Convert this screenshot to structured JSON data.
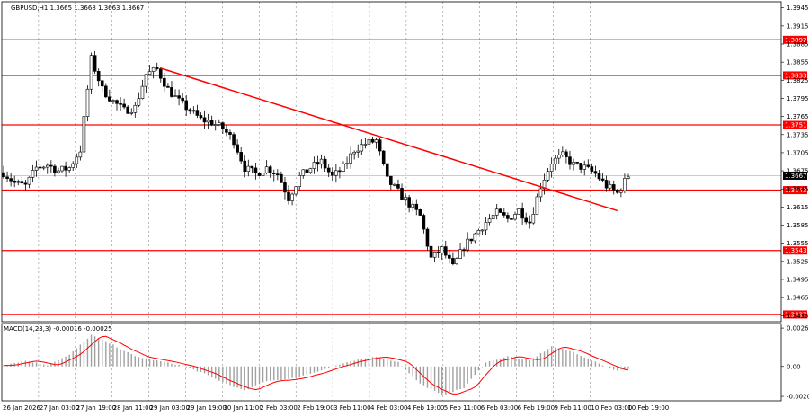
{
  "window": {
    "symbol_info": "GBPUSD,H1  1.3665 1.3668 1.3663 1.3667",
    "macd_info": "MACD(14,23,3) -0.00016 -0.00025"
  },
  "colors": {
    "background": "#ffffff",
    "grid": "#000000",
    "candle": "#000000",
    "support_resistance": "#ff0000",
    "label_bg": "#ff0000",
    "label_text": "#ffffff",
    "macd_histogram": "#a0a0a0",
    "macd_signal": "#ff0000",
    "current_price_bg": "#000000"
  },
  "chart_data": [
    {
      "type": "candlestick",
      "title": "",
      "x_tick_labels": [
        "26 Jan 2026",
        "27 Jan 03:00",
        "27 Jan 19:00",
        "28 Jan 11:00",
        "29 Jan 03:00",
        "29 Jan 19:00",
        "30 Jan 11:00",
        "2 Feb 03:00",
        "2 Feb 19:00",
        "3 Feb 11:00",
        "4 Feb 03:00",
        "4 Feb 19:00",
        "5 Feb 11:00",
        "6 Feb 03:00",
        "6 Feb 19:00",
        "9 Feb 11:00",
        "10 Feb 03:00",
        "10 Feb 19:00"
      ],
      "y_tick_labels": [
        "1.3945",
        "1.3915",
        "1.3885",
        "1.3855",
        "1.3825",
        "1.3795",
        "1.3765",
        "1.3735",
        "1.3705",
        "1.3675",
        "1.3645",
        "1.3615",
        "1.3585",
        "1.3555",
        "1.3525",
        "1.3495",
        "1.3465",
        "1.3435"
      ],
      "ylim": [
        1.3425,
        1.3955
      ],
      "grid": "on",
      "current_price": "1.3667",
      "levels": [
        {
          "label": "1.3892",
          "value": 1.3892
        },
        {
          "label": "1.3833",
          "value": 1.3833
        },
        {
          "label": "1.3751",
          "value": 1.3751
        },
        {
          "label": "1.3643",
          "value": 1.3643
        },
        {
          "label": "1.3543",
          "value": 1.3543
        },
        {
          "label": "1.3437",
          "value": 1.3437
        }
      ],
      "trendline": {
        "x": [
          43,
          168
        ],
        "y": [
          1.3845,
          1.3609
        ]
      },
      "anchors": [
        [
          0,
          1.3672
        ],
        [
          3,
          1.3655
        ],
        [
          6,
          1.365
        ],
        [
          9,
          1.368
        ],
        [
          12,
          1.3685
        ],
        [
          15,
          1.3675
        ],
        [
          18,
          1.368
        ],
        [
          21,
          1.371
        ],
        [
          24,
          1.386
        ],
        [
          27,
          1.381
        ],
        [
          30,
          1.379
        ],
        [
          33,
          1.3775
        ],
        [
          36,
          1.378
        ],
        [
          39,
          1.3835
        ],
        [
          42,
          1.3843
        ],
        [
          45,
          1.381
        ],
        [
          48,
          1.379
        ],
        [
          51,
          1.3775
        ],
        [
          54,
          1.376
        ],
        [
          57,
          1.3755
        ],
        [
          60,
          1.3745
        ],
        [
          63,
          1.3725
        ],
        [
          66,
          1.368
        ],
        [
          69,
          1.367
        ],
        [
          72,
          1.368
        ],
        [
          75,
          1.367
        ],
        [
          78,
          1.363
        ],
        [
          81,
          1.3665
        ],
        [
          84,
          1.368
        ],
        [
          87,
          1.369
        ],
        [
          90,
          1.3665
        ],
        [
          93,
          1.368
        ],
        [
          96,
          1.371
        ],
        [
          99,
          1.372
        ],
        [
          102,
          1.3725
        ],
        [
          105,
          1.366
        ],
        [
          108,
          1.364
        ],
        [
          111,
          1.362
        ],
        [
          114,
          1.36
        ],
        [
          117,
          1.353
        ],
        [
          120,
          1.3545
        ],
        [
          123,
          1.3515
        ],
        [
          126,
          1.355
        ],
        [
          129,
          1.357
        ],
        [
          132,
          1.359
        ],
        [
          135,
          1.3605
        ],
        [
          138,
          1.3595
        ],
        [
          141,
          1.361
        ],
        [
          144,
          1.359
        ],
        [
          147,
          1.365
        ],
        [
          150,
          1.369
        ],
        [
          153,
          1.37
        ],
        [
          156,
          1.3685
        ],
        [
          159,
          1.368
        ],
        [
          162,
          1.367
        ],
        [
          165,
          1.365
        ],
        [
          168,
          1.3638
        ],
        [
          171,
          1.3667
        ]
      ],
      "candle_count": 172
    },
    {
      "type": "bar",
      "title": "",
      "y_tick_labels": [
        "0.00268",
        "0.00",
        "-0.00209"
      ],
      "ylim": [
        -0.0024,
        0.003
      ],
      "histogram_anchors": [
        [
          0,
          0.0001
        ],
        [
          6,
          0.0004
        ],
        [
          12,
          0.0001
        ],
        [
          18,
          0.0008
        ],
        [
          24,
          0.0022
        ],
        [
          30,
          0.0015
        ],
        [
          36,
          0.0007
        ],
        [
          42,
          0.0004
        ],
        [
          48,
          0.0001
        ],
        [
          54,
          -0.0004
        ],
        [
          60,
          -0.0011
        ],
        [
          66,
          -0.0017
        ],
        [
          72,
          -0.001
        ],
        [
          78,
          -0.0009
        ],
        [
          84,
          -0.0005
        ],
        [
          90,
          0.0
        ],
        [
          96,
          0.0004
        ],
        [
          102,
          0.0007
        ],
        [
          108,
          0.0003
        ],
        [
          114,
          -0.0012
        ],
        [
          120,
          -0.002
        ],
        [
          126,
          -0.0015
        ],
        [
          132,
          0.0003
        ],
        [
          138,
          0.0007
        ],
        [
          144,
          0.0004
        ],
        [
          150,
          0.0014
        ],
        [
          156,
          0.001
        ],
        [
          162,
          0.0003
        ],
        [
          168,
          -0.0003
        ],
        [
          171,
          -0.00016
        ]
      ],
      "signal_lag": 2
    }
  ]
}
